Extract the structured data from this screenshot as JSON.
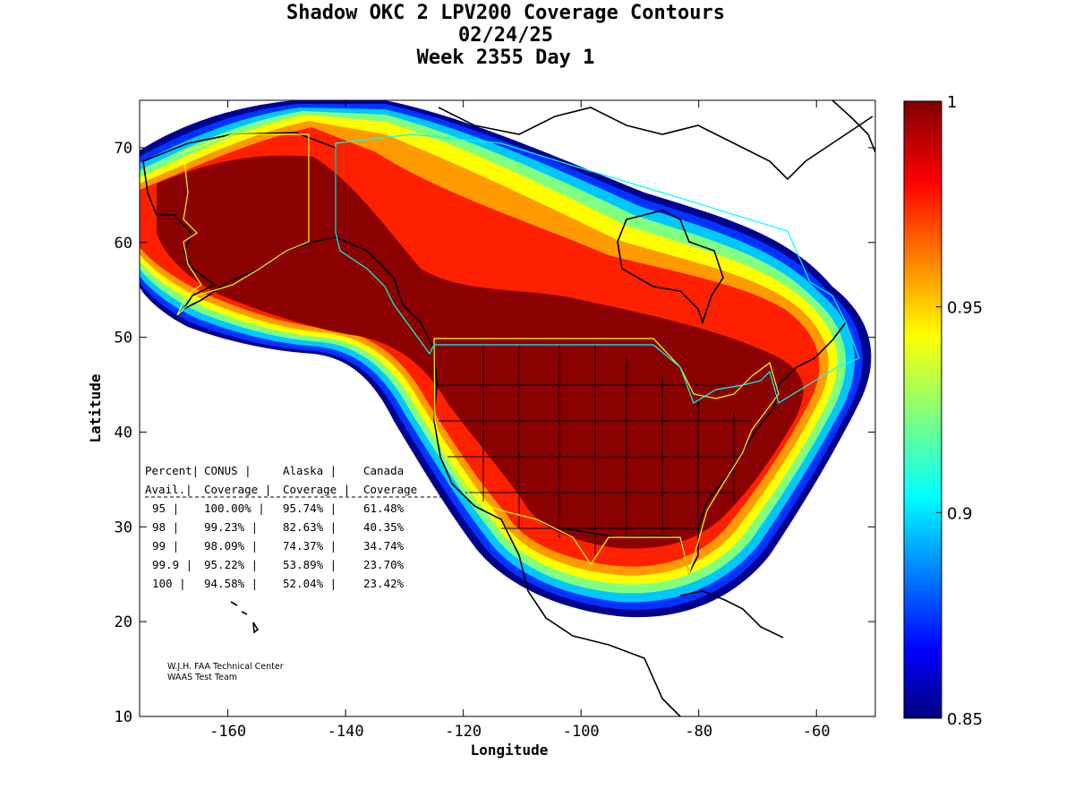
{
  "title": {
    "line1": "Shadow OKC 2 LPV200 Coverage Contours",
    "line2": "02/24/25",
    "line3": "Week 2355 Day 1"
  },
  "axes": {
    "xlabel": "Longitude",
    "ylabel": "Latitude",
    "xlim": [
      -175,
      -50
    ],
    "ylim": [
      10,
      75
    ],
    "xticks": [
      "-160",
      "-140",
      "-120",
      "-100",
      "-80",
      "-60"
    ],
    "yticks": [
      "10",
      "20",
      "30",
      "40",
      "50",
      "60",
      "70"
    ]
  },
  "colorbar": {
    "range": [
      0.85,
      1
    ],
    "ticks": [
      "1",
      "0.95",
      "0.9",
      "0.85"
    ],
    "colormap": "jet"
  },
  "table": {
    "header1": [
      "Percent|",
      "CONUS   |",
      "Alaska  |",
      "Canada"
    ],
    "header2": [
      " Avail.|",
      "Coverage |",
      "Coverage |",
      "Coverage"
    ],
    "rows": [
      [
        "  95   |",
        "100.00%  |",
        "95.74% |",
        "61.48%"
      ],
      [
        "  98   |",
        "99.23%  |",
        "82.63% |",
        "40.35%"
      ],
      [
        "  99   |",
        "98.09%  |",
        "74.37% |",
        "34.74%"
      ],
      [
        "99.9   |",
        "95.22%  |",
        "53.89% |",
        "23.70%"
      ],
      [
        " 100   |",
        "94.58%  |",
        "52.04% |",
        "23.42%"
      ]
    ]
  },
  "credit": {
    "line1": "W.J.H. FAA Technical Center",
    "line2": "WAAS Test Team"
  },
  "colors": {
    "outline": "#000000",
    "alaska_service": "#ffff00",
    "canada_service": "#00ffff"
  }
}
